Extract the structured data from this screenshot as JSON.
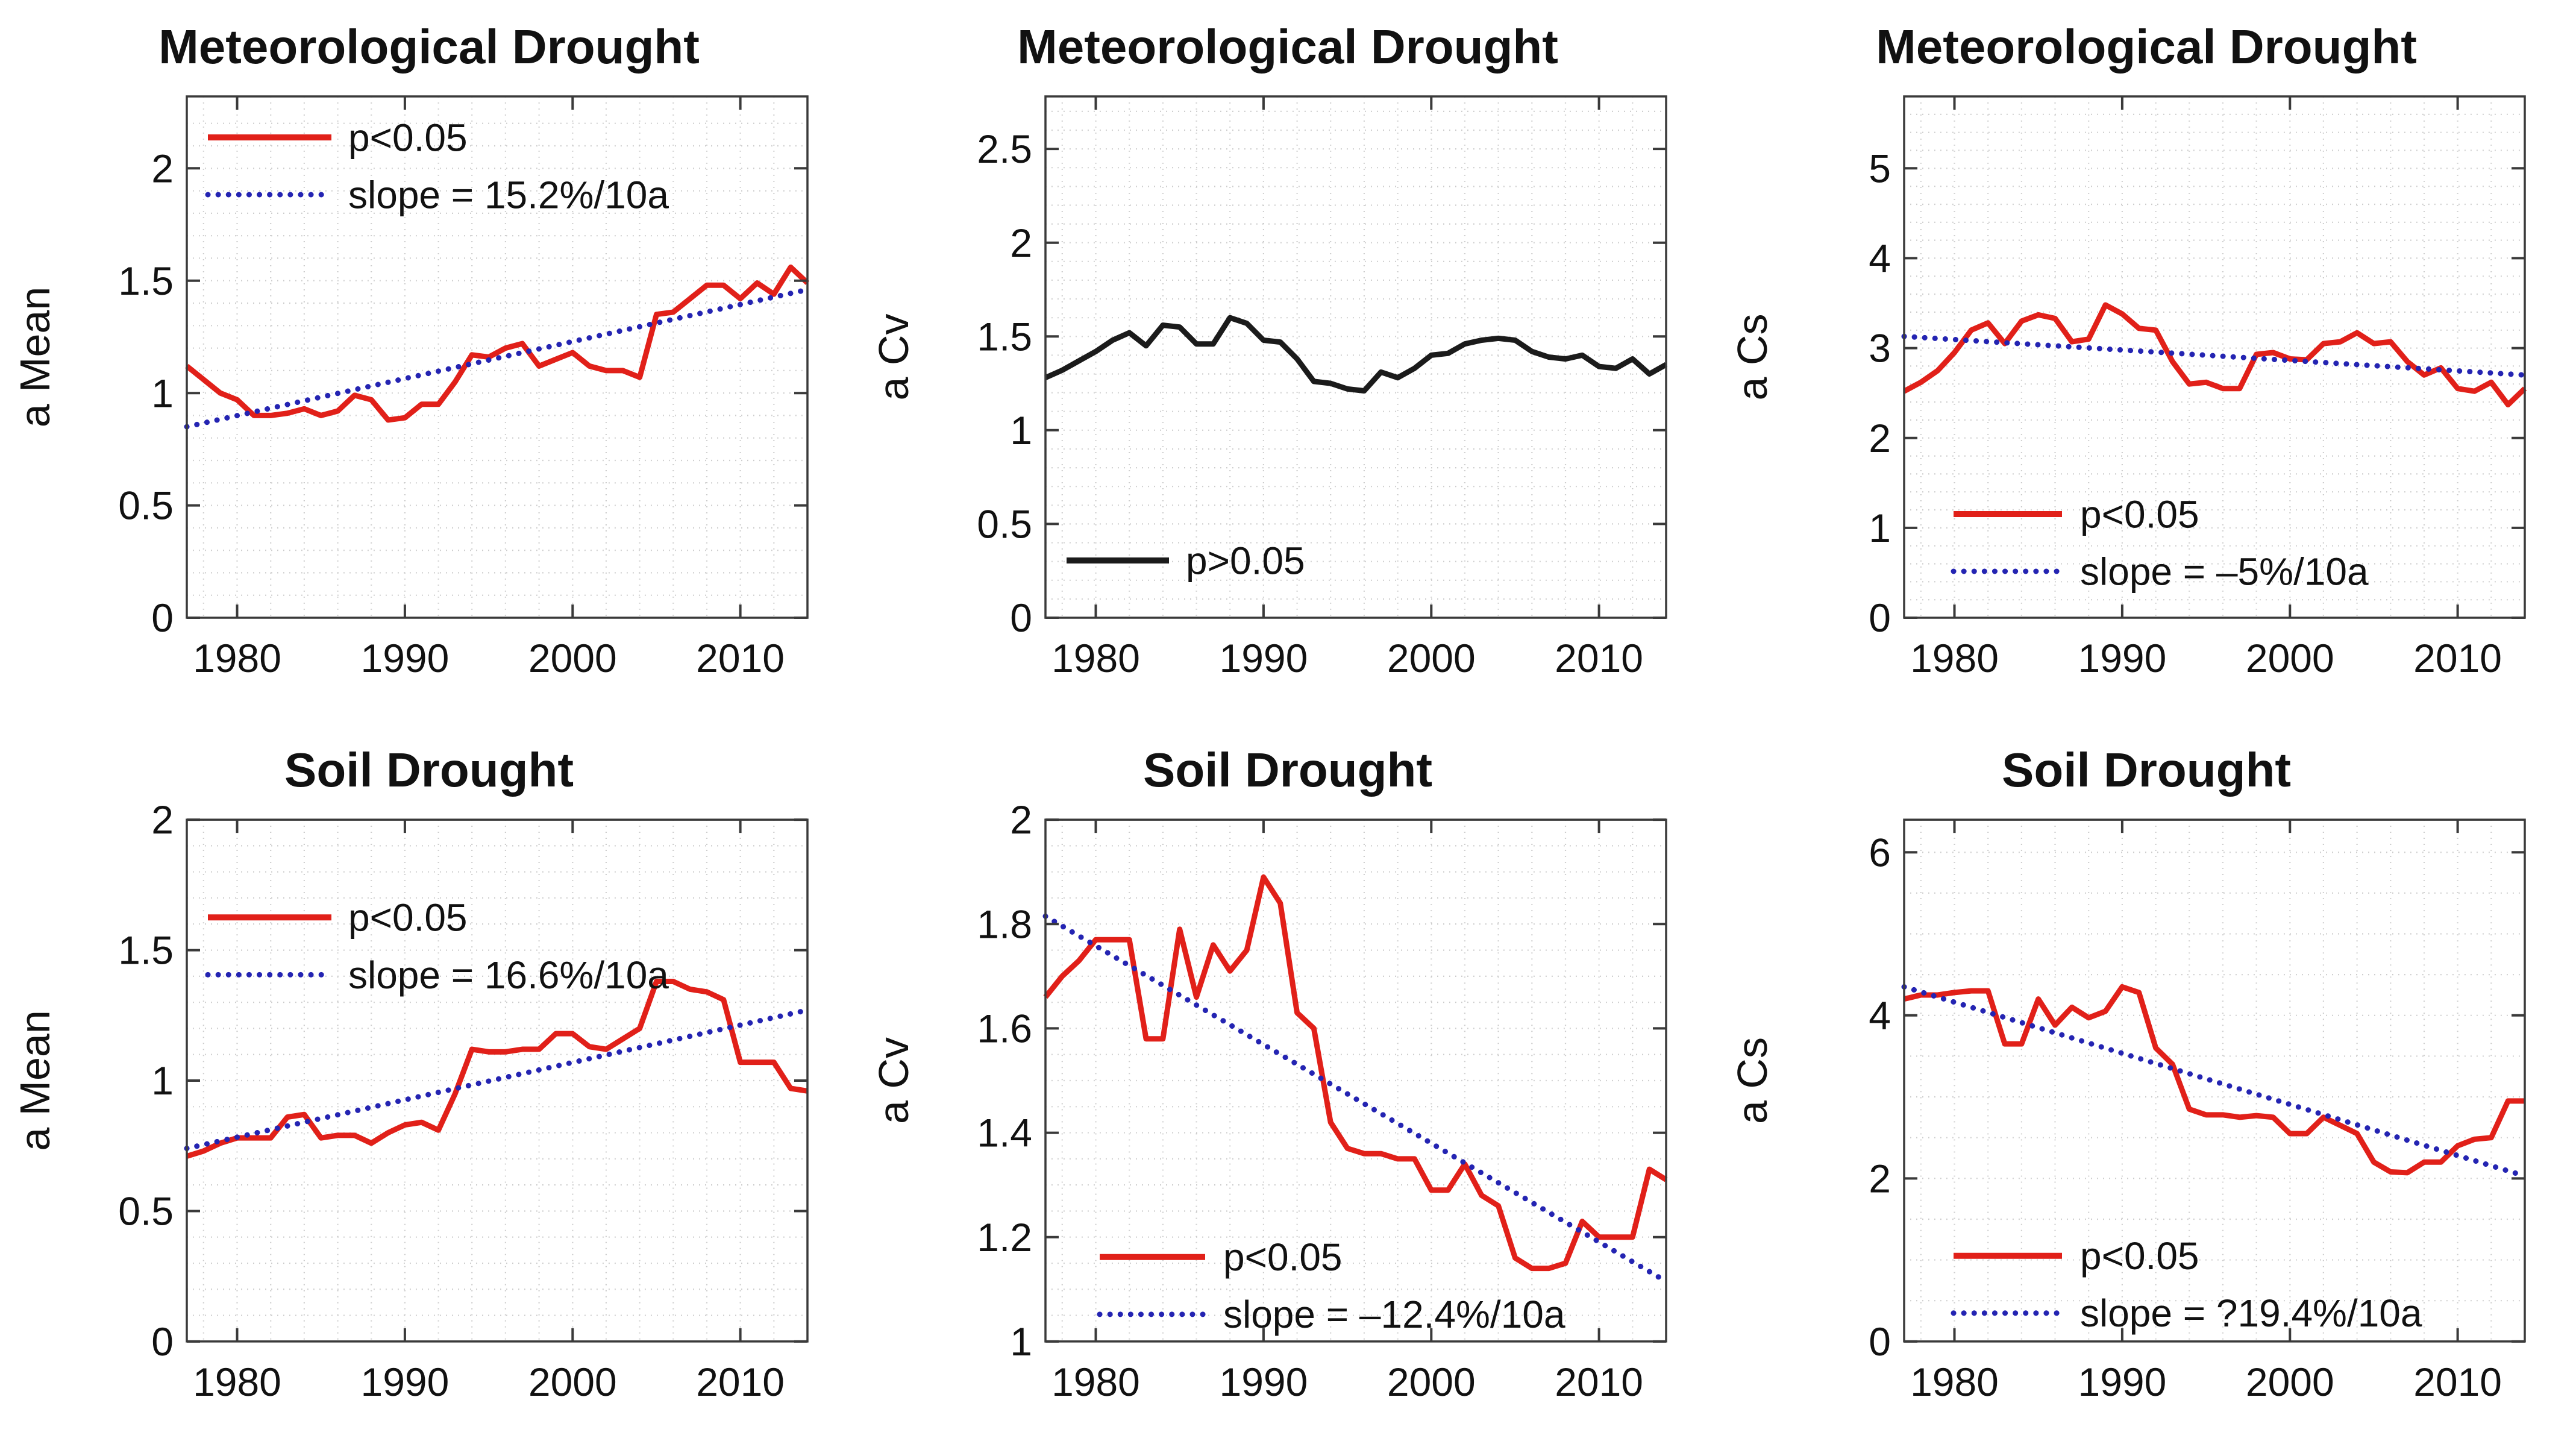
{
  "figure_background": "#ffffff",
  "colors": {
    "significant_line": "#e12019",
    "nonsignificant_line": "#1b1b1b",
    "trend_line": "#2424b2",
    "grid": "#cccccc",
    "axis": "#3a3a3a",
    "text": "#111111"
  },
  "chart_data": {
    "type": "line",
    "grid": "minor-dotted",
    "x": {
      "start": 1977,
      "end": 2014,
      "ticks": [
        1980,
        1990,
        2000,
        2010
      ],
      "tick_labels": [
        "1980",
        "1990",
        "2000",
        "2010"
      ],
      "minor_step": 2
    },
    "years": [
      1977,
      1978,
      1979,
      1980,
      1981,
      1982,
      1983,
      1984,
      1985,
      1986,
      1987,
      1988,
      1989,
      1990,
      1991,
      1992,
      1993,
      1994,
      1995,
      1996,
      1997,
      1998,
      1999,
      2000,
      2001,
      2002,
      2003,
      2004,
      2005,
      2006,
      2007,
      2008,
      2009,
      2010,
      2011,
      2012,
      2013,
      2014
    ],
    "panels": [
      {
        "title": "Meteorological Drought",
        "ylabel": "a Mean",
        "ylim": [
          0,
          2.32
        ],
        "yticks": [
          0,
          0.5,
          1,
          1.5,
          2
        ],
        "ytick_labels": [
          "0",
          "0.5",
          "1",
          "1.5",
          "2"
        ],
        "y_minor_step": 0.1,
        "legend_position": "top-left",
        "series": [
          {
            "name": "p<0.05",
            "color": "#e12019",
            "style": "solid",
            "values": [
              1.12,
              1.06,
              1.0,
              0.97,
              0.9,
              0.9,
              0.91,
              0.93,
              0.9,
              0.92,
              0.99,
              0.97,
              0.88,
              0.89,
              0.95,
              0.95,
              1.05,
              1.17,
              1.16,
              1.2,
              1.22,
              1.12,
              1.15,
              1.18,
              1.12,
              1.1,
              1.1,
              1.07,
              1.35,
              1.36,
              1.42,
              1.48,
              1.48,
              1.42,
              1.49,
              1.44,
              1.56,
              1.49
            ]
          }
        ],
        "trend": {
          "name": "slope = 15.2%/10a",
          "color": "#2424b2",
          "style": "dotted",
          "start_value": 0.85,
          "end_value": 1.46
        }
      },
      {
        "title": "Meteorological Drought",
        "ylabel": "a Cv",
        "ylim": [
          0,
          2.78
        ],
        "yticks": [
          0,
          0.5,
          1,
          1.5,
          2,
          2.5
        ],
        "ytick_labels": [
          "0",
          "0.5",
          "1",
          "1.5",
          "2",
          "2.5"
        ],
        "y_minor_step": 0.1,
        "legend_position": "bottom-left",
        "series": [
          {
            "name": "p>0.05",
            "color": "#1b1b1b",
            "style": "solid",
            "values": [
              1.28,
              1.32,
              1.37,
              1.42,
              1.48,
              1.52,
              1.45,
              1.56,
              1.55,
              1.46,
              1.46,
              1.6,
              1.57,
              1.48,
              1.47,
              1.38,
              1.26,
              1.25,
              1.22,
              1.21,
              1.31,
              1.28,
              1.33,
              1.4,
              1.41,
              1.46,
              1.48,
              1.49,
              1.48,
              1.42,
              1.39,
              1.38,
              1.4,
              1.34,
              1.33,
              1.38,
              1.3,
              1.35
            ]
          }
        ],
        "trend": null
      },
      {
        "title": "Meteorological Drought",
        "ylabel": "a Cs",
        "ylim": [
          0,
          5.8
        ],
        "yticks": [
          0,
          1,
          2,
          3,
          4,
          5
        ],
        "ytick_labels": [
          "0",
          "1",
          "2",
          "3",
          "4",
          "5"
        ],
        "y_minor_step": 0.2,
        "legend_position": "bottom-left",
        "series": [
          {
            "name": "p<0.05",
            "color": "#e12019",
            "style": "solid",
            "values": [
              2.52,
              2.62,
              2.75,
              2.95,
              3.2,
              3.28,
              3.05,
              3.3,
              3.37,
              3.33,
              3.07,
              3.1,
              3.48,
              3.38,
              3.22,
              3.2,
              2.85,
              2.6,
              2.62,
              2.55,
              2.55,
              2.93,
              2.95,
              2.88,
              2.87,
              3.05,
              3.07,
              3.17,
              3.05,
              3.07,
              2.85,
              2.7,
              2.78,
              2.55,
              2.52,
              2.62,
              2.37,
              2.55
            ]
          }
        ],
        "trend": {
          "name": "slope = –5%/10a",
          "color": "#2424b2",
          "style": "dotted",
          "start_value": 3.13,
          "end_value": 2.7
        }
      },
      {
        "title": "Soil Drought",
        "ylabel": "a Mean",
        "ylim": [
          0,
          2.0
        ],
        "yticks": [
          0,
          0.5,
          1,
          1.5,
          2
        ],
        "ytick_labels": [
          "0",
          "0.5",
          "1",
          "1.5",
          "2"
        ],
        "y_minor_step": 0.1,
        "legend_position": "top-left",
        "series": [
          {
            "name": "p<0.05",
            "color": "#e12019",
            "style": "solid",
            "values": [
              0.71,
              0.73,
              0.76,
              0.78,
              0.78,
              0.78,
              0.86,
              0.87,
              0.78,
              0.79,
              0.79,
              0.76,
              0.8,
              0.83,
              0.84,
              0.81,
              0.95,
              1.12,
              1.11,
              1.11,
              1.12,
              1.12,
              1.18,
              1.18,
              1.13,
              1.12,
              1.16,
              1.2,
              1.38,
              1.38,
              1.35,
              1.34,
              1.31,
              1.07,
              1.07,
              1.07,
              0.97,
              0.96
            ]
          }
        ],
        "trend": {
          "name": "slope = 16.6%/10a",
          "color": "#2424b2",
          "style": "dotted",
          "start_value": 0.74,
          "end_value": 1.27
        }
      },
      {
        "title": "Soil Drought",
        "ylabel": "a Cv",
        "ylim": [
          1.0,
          2.0
        ],
        "yticks": [
          1,
          1.2,
          1.4,
          1.6,
          1.8,
          2
        ],
        "ytick_labels": [
          "1",
          "1.2",
          "1.4",
          "1.6",
          "1.8",
          "2"
        ],
        "y_minor_step": 0.05,
        "legend_position": "bottom-left",
        "series": [
          {
            "name": "p<0.05",
            "color": "#e12019",
            "style": "solid",
            "values": [
              1.66,
              1.7,
              1.73,
              1.77,
              1.77,
              1.77,
              1.58,
              1.58,
              1.79,
              1.66,
              1.76,
              1.71,
              1.75,
              1.89,
              1.84,
              1.63,
              1.6,
              1.42,
              1.37,
              1.36,
              1.36,
              1.35,
              1.35,
              1.29,
              1.29,
              1.34,
              1.28,
              1.26,
              1.16,
              1.14,
              1.14,
              1.15,
              1.23,
              1.2,
              1.2,
              1.2,
              1.33,
              1.31
            ]
          }
        ],
        "trend": {
          "name": "slope = –12.4%/10a",
          "color": "#2424b2",
          "style": "dotted",
          "start_value": 1.815,
          "end_value": 1.115
        }
      },
      {
        "title": "Soil Drought",
        "ylabel": "a Cs",
        "ylim": [
          0,
          6.4
        ],
        "yticks": [
          0,
          2,
          4,
          6
        ],
        "ytick_labels": [
          "0",
          "2",
          "4",
          "6"
        ],
        "y_minor_step": 0.5,
        "legend_position": "bottom-left",
        "series": [
          {
            "name": "p<0.05",
            "color": "#e12019",
            "style": "solid",
            "values": [
              4.2,
              4.25,
              4.25,
              4.28,
              4.3,
              4.3,
              3.65,
              3.65,
              4.2,
              3.88,
              4.1,
              3.97,
              4.05,
              4.35,
              4.28,
              3.6,
              3.4,
              2.85,
              2.78,
              2.78,
              2.75,
              2.77,
              2.75,
              2.55,
              2.55,
              2.75,
              2.65,
              2.55,
              2.2,
              2.08,
              2.07,
              2.2,
              2.2,
              2.4,
              2.48,
              2.5,
              2.95,
              2.95
            ]
          }
        ],
        "trend": {
          "name": "slope = ?19.4%/10a",
          "color": "#2424b2",
          "style": "dotted",
          "start_value": 4.35,
          "end_value": 2.03
        }
      }
    ]
  }
}
